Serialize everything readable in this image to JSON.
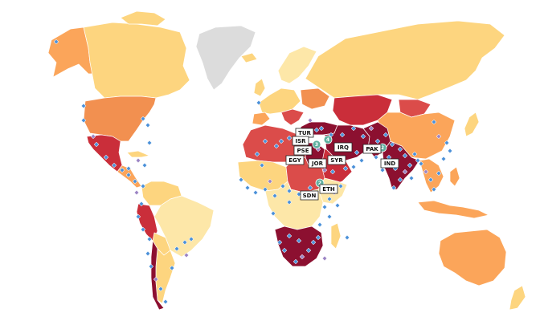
{
  "colors": {
    "no_data": "#dcdcdc",
    "level_1": "#fde7a8",
    "level_2": "#fdd57f",
    "level_3": "#fba55a",
    "level_4": "#f29050",
    "level_5": "#db4c4a",
    "level_6": "#ca2e3a",
    "level_7": "#8c1030",
    "marker_blue": "#4a90d9",
    "marker_purple": "#9b84c4",
    "cluster_teal": "#5fb0a0"
  },
  "country_labels": [
    {
      "code": "TUR"
    },
    {
      "code": "ISR"
    },
    {
      "code": "PSE"
    },
    {
      "code": "EGY"
    },
    {
      "code": "JOR"
    },
    {
      "code": "SYR"
    },
    {
      "code": "IRQ"
    },
    {
      "code": "PAK"
    },
    {
      "code": "IND"
    },
    {
      "code": "ETH"
    },
    {
      "code": "SDN"
    }
  ],
  "cluster_markers": [
    {
      "count": "4"
    },
    {
      "count": "3"
    },
    {
      "count": "2"
    },
    {
      "count": "2"
    }
  ]
}
